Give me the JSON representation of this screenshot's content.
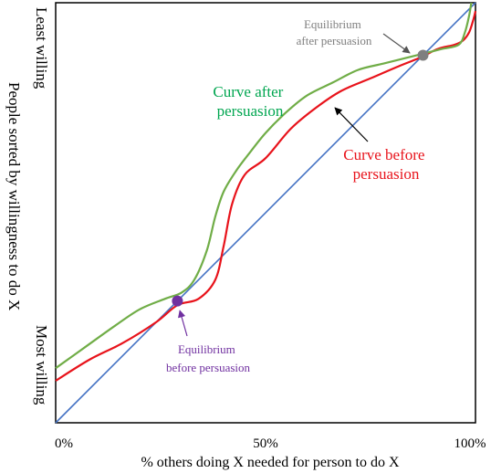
{
  "chart_data": {
    "type": "line",
    "title": "",
    "xlabel": "% others doing X needed for person to do X",
    "ylabel": "People sorted by willingness to do X",
    "y_top_label": "Least willing",
    "y_bottom_label": "Most willing",
    "x_ticks": [
      "0%",
      "50%",
      "100%"
    ],
    "xlim": [
      0,
      100
    ],
    "ylim": [
      0,
      100
    ],
    "grid": false,
    "series": [
      {
        "key": "diagonal",
        "color": "#4472c4",
        "x": [
          0,
          100
        ],
        "y": [
          0,
          100
        ]
      },
      {
        "key": "before",
        "name": "Curve before persuasion",
        "color": "#e8131b",
        "x": [
          0,
          8,
          16,
          24,
          29,
          34,
          38,
          40,
          42,
          45,
          50,
          56,
          62,
          68,
          75,
          82,
          87,
          91,
          95,
          97,
          98.5,
          99.5,
          100
        ],
        "y": [
          10,
          15,
          19,
          24,
          28,
          29.5,
          34,
          42,
          52,
          59,
          63,
          70,
          75,
          79,
          82,
          85,
          87,
          89,
          90,
          91,
          93,
          96,
          98
        ]
      },
      {
        "key": "after",
        "name": "Curve after persuasion",
        "color": "#70ad47",
        "x": [
          0,
          7,
          14,
          20,
          26,
          30,
          33,
          36,
          38,
          40,
          43,
          46,
          50,
          55,
          60,
          66,
          72,
          78,
          84,
          88,
          92,
          96,
          97.5,
          98.5,
          99
        ],
        "y": [
          13,
          18,
          23,
          27,
          29.5,
          31,
          34,
          41,
          49,
          55,
          60,
          64,
          69,
          74,
          78,
          81,
          84,
          85.5,
          87,
          88,
          89,
          90,
          93,
          97,
          100
        ]
      }
    ],
    "points": [
      {
        "key": "eq_before",
        "x": 29,
        "y": 29,
        "color": "#7030a0",
        "label": [
          "Equilibrium",
          "before persuasion"
        ]
      },
      {
        "key": "eq_after",
        "x": 87.5,
        "y": 87.5,
        "color": "#7f7f7f",
        "label": [
          "Equilibrium",
          "after persuasion"
        ]
      }
    ],
    "annotations": [
      {
        "key": "after_label",
        "color": "#00a650",
        "lines": [
          "Curve after",
          "persuasion"
        ]
      },
      {
        "key": "before_label",
        "color": "#e8131b",
        "lines": [
          "Curve before",
          "persuasion"
        ]
      }
    ]
  }
}
